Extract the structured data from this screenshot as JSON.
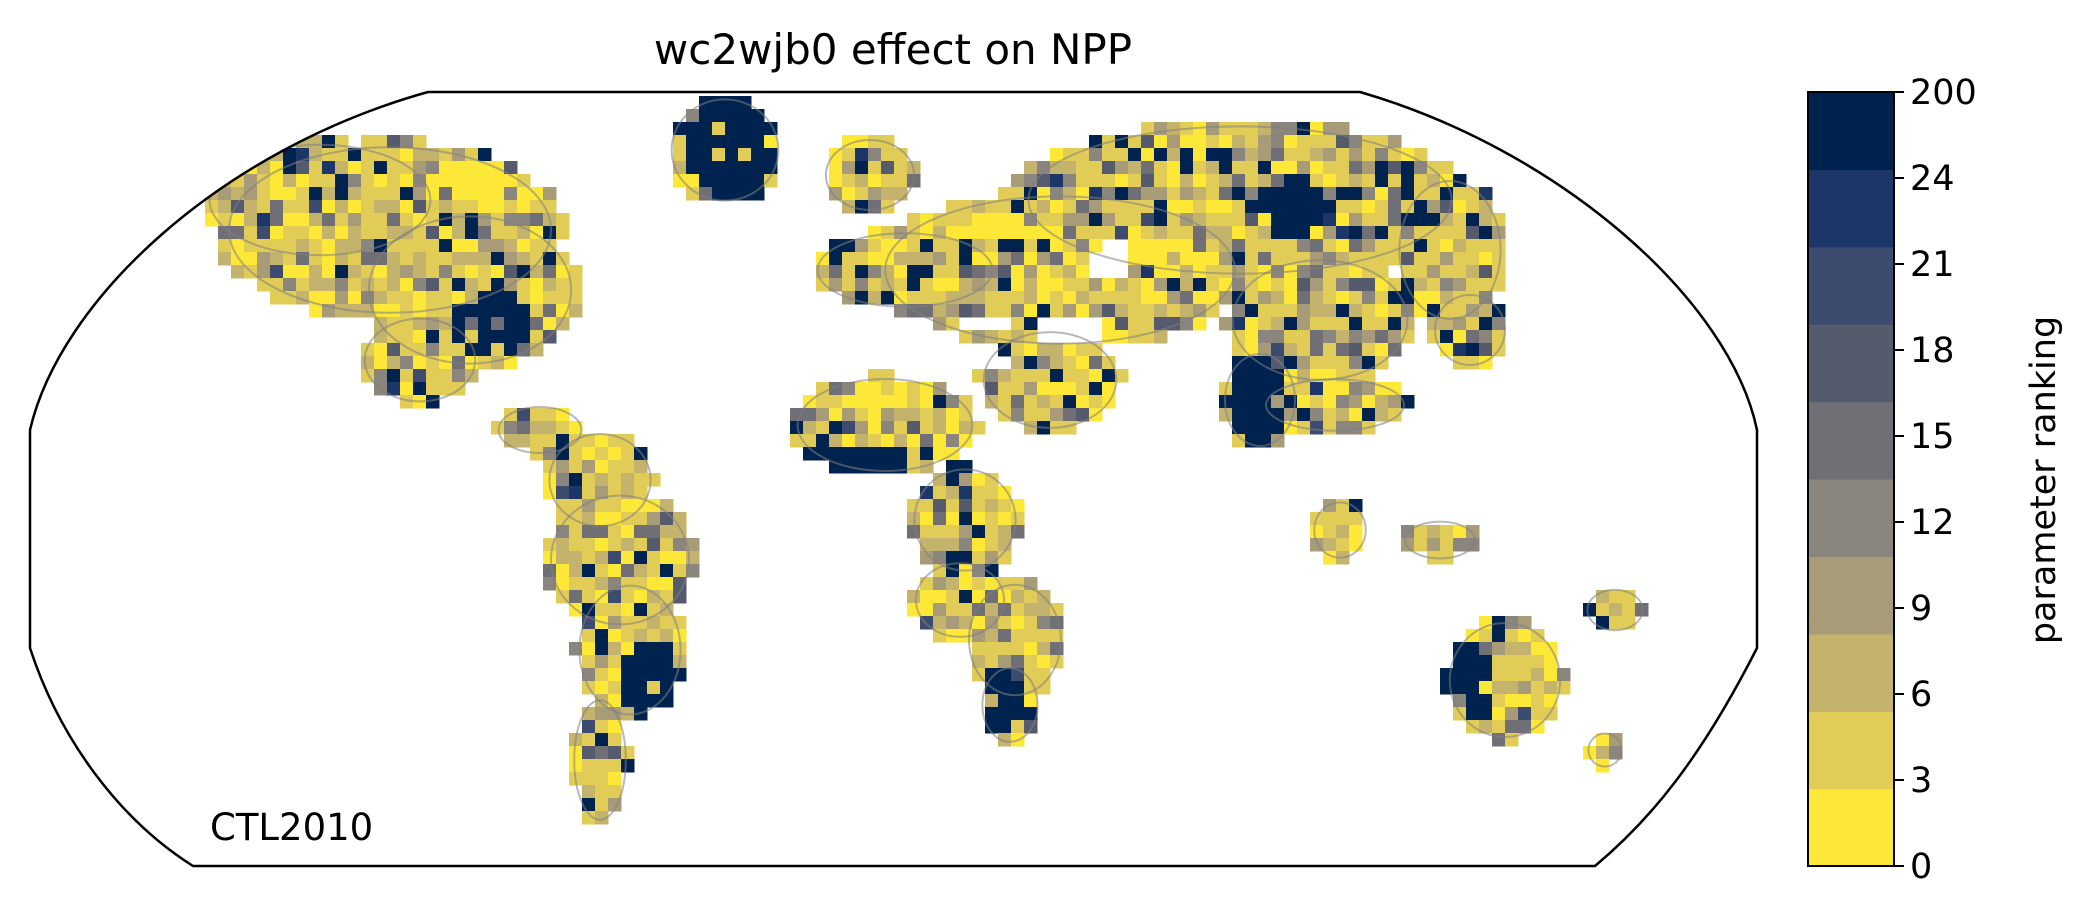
{
  "map": {
    "title": "wc2wjb0 effect on NPP",
    "annotation": "CTL2010",
    "projection": "robinson"
  },
  "colorbar": {
    "label": "parameter ranking",
    "ticks": [
      "0",
      "3",
      "6",
      "9",
      "12",
      "15",
      "18",
      "21",
      "24",
      "200"
    ],
    "colors": [
      "#fde737",
      "#e0cc56",
      "#c4b36c",
      "#a79b78",
      "#8a867e",
      "#6f6f75",
      "#555b6d",
      "#3d4b6e",
      "#1d3668",
      "#00224e"
    ]
  },
  "colors": {
    "coastline": "#7f7f7f",
    "frame": "#000000",
    "background": "#ffffff"
  }
}
